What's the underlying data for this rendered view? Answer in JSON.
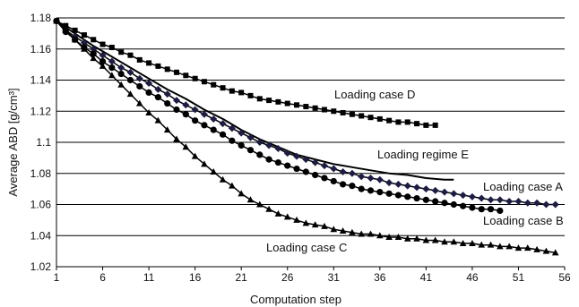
{
  "chart_data": {
    "type": "line",
    "title": "",
    "xlabel": "Computation step",
    "ylabel": "Average ABD [g/cm³]",
    "xlim": [
      1,
      56
    ],
    "ylim": [
      1.02,
      1.18
    ],
    "xticks": [
      1,
      6,
      11,
      16,
      21,
      26,
      31,
      36,
      41,
      46,
      51,
      56
    ],
    "yticks": [
      1.02,
      1.04,
      1.06,
      1.08,
      1.1,
      1.12,
      1.14,
      1.16,
      1.18
    ],
    "ytick_labels": [
      "1.02",
      "1.04",
      "1.06",
      "1.08",
      "1.1",
      "1.12",
      "1.14",
      "1.16",
      "1.18"
    ],
    "grid": "horizontal",
    "legend": "inline labels",
    "colors": {
      "line": "#000000",
      "grid": "#000000"
    },
    "series": [
      {
        "name": "Loading case D",
        "marker": "square",
        "x": [
          1,
          2,
          3,
          4,
          5,
          6,
          7,
          8,
          9,
          10,
          11,
          12,
          13,
          14,
          15,
          16,
          17,
          18,
          19,
          20,
          21,
          22,
          23,
          24,
          25,
          26,
          27,
          28,
          29,
          30,
          31,
          32,
          33,
          34,
          35,
          36,
          37,
          38,
          39,
          40,
          41,
          42
        ],
        "y": [
          1.178,
          1.175,
          1.172,
          1.169,
          1.166,
          1.163,
          1.161,
          1.158,
          1.156,
          1.153,
          1.151,
          1.149,
          1.147,
          1.145,
          1.143,
          1.141,
          1.139,
          1.137,
          1.135,
          1.133,
          1.132,
          1.13,
          1.128,
          1.127,
          1.126,
          1.125,
          1.124,
          1.123,
          1.122,
          1.121,
          1.12,
          1.119,
          1.118,
          1.117,
          1.116,
          1.115,
          1.114,
          1.113,
          1.113,
          1.112,
          1.111,
          1.111
        ]
      },
      {
        "name": "Loading regime E",
        "marker": "none",
        "x": [
          1,
          3,
          5,
          7,
          9,
          11,
          13,
          15,
          17,
          19,
          21,
          23,
          25,
          27,
          29,
          31,
          33,
          35,
          37,
          39,
          41,
          43,
          44
        ],
        "y": [
          1.178,
          1.17,
          1.162,
          1.155,
          1.148,
          1.141,
          1.134,
          1.128,
          1.121,
          1.115,
          1.108,
          1.102,
          1.097,
          1.092,
          1.089,
          1.086,
          1.084,
          1.082,
          1.08,
          1.079,
          1.077,
          1.076,
          1.076
        ]
      },
      {
        "name": "Loading case A",
        "marker": "diamond",
        "x": [
          1,
          2,
          3,
          4,
          5,
          6,
          7,
          8,
          9,
          10,
          11,
          12,
          13,
          14,
          15,
          16,
          17,
          18,
          19,
          20,
          21,
          22,
          23,
          24,
          25,
          26,
          27,
          28,
          29,
          30,
          31,
          32,
          33,
          34,
          35,
          36,
          37,
          38,
          39,
          40,
          41,
          42,
          43,
          44,
          45,
          46,
          47,
          48,
          49,
          50,
          51,
          52,
          53,
          54,
          55
        ],
        "y": [
          1.178,
          1.172,
          1.168,
          1.164,
          1.16,
          1.156,
          1.152,
          1.148,
          1.145,
          1.141,
          1.138,
          1.134,
          1.131,
          1.127,
          1.124,
          1.121,
          1.118,
          1.115,
          1.112,
          1.109,
          1.106,
          1.103,
          1.1,
          1.098,
          1.096,
          1.093,
          1.091,
          1.089,
          1.087,
          1.085,
          1.083,
          1.081,
          1.08,
          1.078,
          1.077,
          1.076,
          1.074,
          1.073,
          1.072,
          1.071,
          1.07,
          1.069,
          1.068,
          1.067,
          1.066,
          1.065,
          1.064,
          1.063,
          1.063,
          1.062,
          1.062,
          1.061,
          1.061,
          1.06,
          1.06
        ]
      },
      {
        "name": "Loading case B",
        "marker": "circle",
        "x": [
          1,
          2,
          3,
          4,
          5,
          6,
          7,
          8,
          9,
          10,
          11,
          12,
          13,
          14,
          15,
          16,
          17,
          18,
          19,
          20,
          21,
          22,
          23,
          24,
          25,
          26,
          27,
          28,
          29,
          30,
          31,
          32,
          33,
          34,
          35,
          36,
          37,
          38,
          39,
          40,
          41,
          42,
          43,
          44,
          45,
          46,
          47,
          48,
          49
        ],
        "y": [
          1.178,
          1.171,
          1.166,
          1.161,
          1.157,
          1.152,
          1.148,
          1.144,
          1.14,
          1.136,
          1.132,
          1.129,
          1.125,
          1.121,
          1.118,
          1.114,
          1.111,
          1.108,
          1.105,
          1.101,
          1.098,
          1.095,
          1.092,
          1.089,
          1.087,
          1.085,
          1.083,
          1.081,
          1.079,
          1.077,
          1.075,
          1.073,
          1.072,
          1.07,
          1.069,
          1.068,
          1.067,
          1.066,
          1.065,
          1.064,
          1.063,
          1.062,
          1.061,
          1.06,
          1.059,
          1.058,
          1.057,
          1.057,
          1.056
        ]
      },
      {
        "name": "Loading case C",
        "marker": "triangle",
        "x": [
          1,
          2,
          3,
          4,
          5,
          6,
          7,
          8,
          9,
          10,
          11,
          12,
          13,
          14,
          15,
          16,
          17,
          18,
          19,
          20,
          21,
          22,
          23,
          24,
          25,
          26,
          27,
          28,
          29,
          30,
          31,
          32,
          33,
          34,
          35,
          36,
          37,
          38,
          39,
          40,
          41,
          42,
          43,
          44,
          45,
          46,
          47,
          48,
          49,
          50,
          51,
          52,
          53,
          54,
          55
        ],
        "y": [
          1.178,
          1.172,
          1.166,
          1.16,
          1.154,
          1.149,
          1.143,
          1.137,
          1.131,
          1.125,
          1.119,
          1.114,
          1.108,
          1.102,
          1.097,
          1.091,
          1.086,
          1.081,
          1.076,
          1.072,
          1.067,
          1.063,
          1.06,
          1.057,
          1.054,
          1.052,
          1.05,
          1.048,
          1.047,
          1.046,
          1.044,
          1.043,
          1.042,
          1.041,
          1.041,
          1.04,
          1.039,
          1.039,
          1.038,
          1.038,
          1.037,
          1.037,
          1.036,
          1.036,
          1.035,
          1.035,
          1.034,
          1.034,
          1.033,
          1.033,
          1.032,
          1.032,
          1.031,
          1.03,
          1.029
        ]
      }
    ]
  }
}
